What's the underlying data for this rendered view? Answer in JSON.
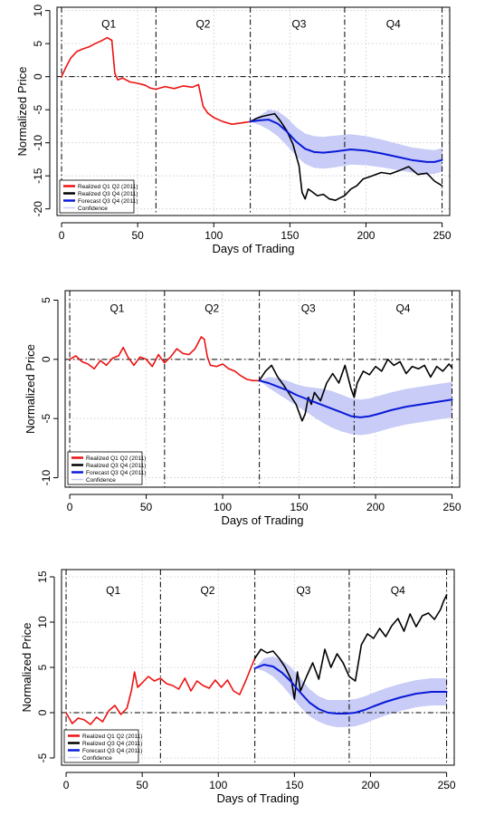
{
  "chart_data": [
    {
      "type": "line",
      "xlabel": "Days of Trading",
      "ylabel": "Normalized Price",
      "xlim": [
        -3,
        255
      ],
      "ylim": [
        -21,
        10.5
      ],
      "xticks": [
        0,
        50,
        100,
        150,
        200,
        250
      ],
      "yticks": [
        -20,
        -15,
        -10,
        -5,
        0,
        5,
        10
      ],
      "quarter_labels": [
        "Q1",
        "Q2",
        "Q3",
        "Q4"
      ],
      "quarter_label_x": [
        31,
        93,
        156,
        218
      ],
      "quarter_label_y": 8,
      "quarter_boundaries": [
        0,
        62,
        124,
        186,
        250
      ],
      "zero_line": 0,
      "grid": true,
      "legend_position": "bottom-left",
      "legend": [
        {
          "label": "Realized Q1 Q2 (2011)",
          "color": "#ee1111"
        },
        {
          "label": "Realized Q3 Q4 (2011)",
          "color": "#000000"
        },
        {
          "label": "Forecast Q3 Q4 (2011)",
          "color": "#0a1ad8"
        },
        {
          "label": "Confidence",
          "color": "#c8ccf6"
        }
      ],
      "series": [
        {
          "name": "Realized Q1 Q2 (2011)",
          "color": "#ee1111",
          "x": [
            0,
            3,
            6,
            10,
            14,
            18,
            22,
            26,
            30,
            33,
            35,
            37,
            40,
            45,
            50,
            55,
            58,
            62,
            68,
            74,
            80,
            86,
            90,
            93,
            96,
            100,
            106,
            112,
            118,
            124
          ],
          "y": [
            0,
            1.5,
            2.8,
            3.8,
            4.2,
            4.5,
            5.0,
            5.4,
            5.9,
            5.5,
            0.5,
            -0.5,
            -0.2,
            -0.8,
            -1.0,
            -1.3,
            -1.7,
            -1.9,
            -1.5,
            -1.8,
            -1.4,
            -1.6,
            -1.2,
            -4.5,
            -5.5,
            -6.2,
            -6.8,
            -7.2,
            -7.0,
            -6.8
          ]
        },
        {
          "name": "Realized Q3 Q4 (2011)",
          "color": "#000000",
          "x": [
            124,
            128,
            132,
            136,
            140,
            144,
            148,
            152,
            156,
            158,
            160,
            162,
            164,
            168,
            172,
            176,
            180,
            184,
            186,
            190,
            194,
            198,
            204,
            210,
            216,
            222,
            228,
            234,
            240,
            245,
            250
          ],
          "y": [
            -6.8,
            -6.3,
            -6.0,
            -5.8,
            -5.6,
            -6.8,
            -8.2,
            -10.2,
            -13.5,
            -17.5,
            -18.5,
            -17.0,
            -17.3,
            -18.0,
            -17.8,
            -18.5,
            -18.7,
            -18.2,
            -18.0,
            -17.0,
            -16.5,
            -15.5,
            -15.0,
            -14.5,
            -14.7,
            -14.2,
            -13.6,
            -14.8,
            -14.6,
            -15.8,
            -16.5
          ]
        },
        {
          "name": "Forecast Q3 Q4 (2011)",
          "color": "#0a1ad8",
          "x": [
            124,
            130,
            136,
            142,
            148,
            154,
            160,
            166,
            172,
            180,
            190,
            200,
            210,
            220,
            230,
            240,
            245,
            250
          ],
          "y": [
            -6.8,
            -6.6,
            -6.5,
            -7.1,
            -8.3,
            -9.8,
            -10.9,
            -11.4,
            -11.5,
            -11.3,
            -11.0,
            -11.2,
            -11.6,
            -12.1,
            -12.6,
            -12.9,
            -12.9,
            -12.6
          ]
        }
      ],
      "confidence": {
        "name": "Confidence",
        "color": "#c8ccf6",
        "x": [
          124,
          130,
          136,
          142,
          148,
          154,
          160,
          166,
          172,
          180,
          190,
          200,
          210,
          220,
          230,
          240,
          245,
          250
        ],
        "lower": [
          -6.8,
          -7.3,
          -8.0,
          -9.0,
          -10.4,
          -12.0,
          -13.2,
          -13.8,
          -13.9,
          -13.7,
          -13.3,
          -13.4,
          -13.7,
          -14.1,
          -14.5,
          -14.8,
          -14.7,
          -14.4
        ],
        "upper": [
          -6.8,
          -5.9,
          -5.0,
          -5.2,
          -6.2,
          -7.6,
          -8.6,
          -9.0,
          -9.1,
          -8.9,
          -8.7,
          -9.0,
          -9.5,
          -10.1,
          -10.7,
          -11.0,
          -11.1,
          -10.8
        ]
      }
    },
    {
      "type": "line",
      "xlabel": "Days of Trading",
      "ylabel": "Normalized Price",
      "xlim": [
        -3,
        255
      ],
      "ylim": [
        -10.8,
        5.8
      ],
      "xticks": [
        0,
        50,
        100,
        150,
        200,
        250
      ],
      "yticks": [
        -10,
        -5,
        0,
        5
      ],
      "quarter_labels": [
        "Q1",
        "Q2",
        "Q3",
        "Q4"
      ],
      "quarter_label_x": [
        31,
        93,
        156,
        218
      ],
      "quarter_label_y": 4.3,
      "quarter_boundaries": [
        0,
        62,
        124,
        186,
        250
      ],
      "zero_line": 0,
      "grid": true,
      "legend_position": "bottom-left",
      "legend": [
        {
          "label": "Realized Q1 Q2 (2011)",
          "color": "#ee1111"
        },
        {
          "label": "Realized Q3 Q4 (2011)",
          "color": "#000000"
        },
        {
          "label": "Forecast Q3 Q4 (2011)",
          "color": "#0a1ad8"
        },
        {
          "label": "Confidence",
          "color": "#c8ccf6"
        }
      ],
      "series": [
        {
          "name": "Realized Q1 Q2 (2011)",
          "color": "#ee1111",
          "x": [
            0,
            4,
            8,
            12,
            16,
            20,
            24,
            28,
            32,
            35,
            38,
            42,
            46,
            50,
            54,
            58,
            62,
            66,
            70,
            74,
            78,
            82,
            86,
            88,
            90,
            92,
            96,
            100,
            104,
            108,
            112,
            116,
            120,
            124
          ],
          "y": [
            0,
            0.3,
            -0.2,
            -0.4,
            -0.8,
            -0.1,
            -0.5,
            0.1,
            0.3,
            1.0,
            0.2,
            -0.5,
            0.2,
            0.0,
            -0.6,
            0.4,
            -0.3,
            0.2,
            0.9,
            0.5,
            0.4,
            0.9,
            1.9,
            1.7,
            0.2,
            -0.5,
            -0.6,
            -0.4,
            -0.8,
            -1.0,
            -1.4,
            -1.7,
            -1.8,
            -1.8
          ]
        },
        {
          "name": "Realized Q3 Q4 (2011)",
          "color": "#000000",
          "x": [
            124,
            128,
            132,
            136,
            140,
            144,
            148,
            152,
            154,
            156,
            158,
            160,
            164,
            168,
            172,
            176,
            180,
            184,
            186,
            188,
            192,
            196,
            200,
            204,
            208,
            212,
            216,
            220,
            224,
            228,
            232,
            236,
            240,
            244,
            248,
            250
          ],
          "y": [
            -1.8,
            -1.0,
            -0.5,
            -1.5,
            -2.2,
            -3.0,
            -3.8,
            -5.2,
            -4.6,
            -3.2,
            -3.8,
            -2.8,
            -3.5,
            -2.0,
            -1.2,
            -2.0,
            -0.5,
            -2.5,
            -3.2,
            -2.0,
            -1.0,
            -1.3,
            -0.6,
            -1.0,
            0.0,
            -0.5,
            -0.2,
            -1.2,
            -0.6,
            -0.8,
            -0.5,
            -1.5,
            -0.6,
            -1.0,
            -0.4,
            -0.7
          ]
        },
        {
          "name": "Forecast Q3 Q4 (2011)",
          "color": "#0a1ad8",
          "x": [
            124,
            130,
            136,
            142,
            148,
            154,
            160,
            166,
            172,
            178,
            184,
            190,
            196,
            202,
            210,
            220,
            230,
            240,
            250
          ],
          "y": [
            -1.8,
            -2.0,
            -2.3,
            -2.6,
            -3.0,
            -3.3,
            -3.6,
            -3.9,
            -4.2,
            -4.5,
            -4.8,
            -4.9,
            -4.8,
            -4.6,
            -4.3,
            -4.0,
            -3.8,
            -3.6,
            -3.4
          ]
        }
      ],
      "confidence": {
        "name": "Confidence",
        "color": "#c8ccf6",
        "x": [
          124,
          130,
          136,
          142,
          148,
          154,
          160,
          166,
          172,
          178,
          184,
          190,
          196,
          202,
          210,
          220,
          230,
          240,
          250
        ],
        "lower": [
          -1.8,
          -2.4,
          -2.9,
          -3.4,
          -3.9,
          -4.4,
          -4.9,
          -5.4,
          -5.8,
          -6.1,
          -6.3,
          -6.4,
          -6.3,
          -6.1,
          -5.8,
          -5.5,
          -5.3,
          -5.1,
          -4.9
        ],
        "upper": [
          -1.8,
          -1.5,
          -1.6,
          -1.8,
          -2.1,
          -2.3,
          -2.4,
          -2.5,
          -2.7,
          -3.0,
          -3.3,
          -3.4,
          -3.3,
          -3.1,
          -2.8,
          -2.5,
          -2.3,
          -2.1,
          -1.9
        ]
      }
    },
    {
      "type": "line",
      "xlabel": "Days of Trading",
      "ylabel": "Normalized Price",
      "xlim": [
        -3,
        255
      ],
      "ylim": [
        -5.8,
        15.8
      ],
      "xticks": [
        0,
        50,
        100,
        150,
        200,
        250
      ],
      "yticks": [
        -5,
        0,
        5,
        10,
        15
      ],
      "quarter_labels": [
        "Q1",
        "Q2",
        "Q3",
        "Q4"
      ],
      "quarter_label_x": [
        31,
        93,
        156,
        218
      ],
      "quarter_label_y": 13.5,
      "quarter_boundaries": [
        0,
        62,
        124,
        186,
        250
      ],
      "zero_line": 0,
      "grid": true,
      "legend_position": "bottom-left",
      "legend": [
        {
          "label": "Realized Q1 Q2 (2011)",
          "color": "#ee1111"
        },
        {
          "label": "Realized Q3 Q4 (2011)",
          "color": "#000000"
        },
        {
          "label": "Forecast Q3 Q4 (2011)",
          "color": "#0a1ad8"
        },
        {
          "label": "Confidence",
          "color": "#c8ccf6"
        }
      ],
      "series": [
        {
          "name": "Realized Q1 Q2 (2011)",
          "color": "#ee1111",
          "x": [
            0,
            4,
            8,
            12,
            16,
            20,
            24,
            28,
            32,
            36,
            40,
            43,
            45,
            47,
            50,
            54,
            58,
            62,
            66,
            70,
            74,
            78,
            82,
            86,
            90,
            94,
            98,
            102,
            106,
            110,
            114,
            118,
            122,
            124
          ],
          "y": [
            0,
            -1.2,
            -0.6,
            -0.8,
            -1.3,
            -0.5,
            -1.0,
            0.2,
            0.8,
            -0.2,
            0.5,
            2.5,
            4.5,
            2.8,
            3.3,
            4.0,
            3.5,
            3.8,
            3.2,
            3.0,
            2.6,
            3.8,
            2.4,
            3.5,
            3.0,
            2.7,
            3.6,
            2.8,
            3.6,
            2.4,
            2.0,
            3.5,
            5.2,
            6.0
          ]
        },
        {
          "name": "Realized Q3 Q4 (2011)",
          "color": "#000000",
          "x": [
            124,
            128,
            132,
            136,
            140,
            144,
            148,
            150,
            152,
            154,
            158,
            162,
            166,
            170,
            174,
            178,
            182,
            186,
            190,
            194,
            198,
            202,
            206,
            210,
            214,
            218,
            222,
            226,
            230,
            234,
            238,
            242,
            246,
            248,
            250
          ],
          "y": [
            6.0,
            7.0,
            6.6,
            6.8,
            6.0,
            5.0,
            3.6,
            1.5,
            4.5,
            2.4,
            4.0,
            5.5,
            3.7,
            7.0,
            5.0,
            6.5,
            5.5,
            4.0,
            3.5,
            7.5,
            8.7,
            8.2,
            9.3,
            8.4,
            9.6,
            10.4,
            9.0,
            10.9,
            9.5,
            10.7,
            11.0,
            10.3,
            11.4,
            12.3,
            13.0
          ]
        },
        {
          "name": "Forecast Q3 Q4 (2011)",
          "color": "#0a1ad8",
          "x": [
            124,
            130,
            136,
            142,
            148,
            154,
            160,
            166,
            172,
            178,
            184,
            190,
            196,
            202,
            210,
            220,
            230,
            240,
            250
          ],
          "y": [
            4.9,
            5.3,
            5.1,
            4.4,
            3.4,
            2.2,
            1.1,
            0.4,
            0.0,
            -0.1,
            -0.1,
            0.0,
            0.3,
            0.7,
            1.2,
            1.7,
            2.1,
            2.3,
            2.3
          ]
        }
      ],
      "confidence": {
        "name": "Confidence",
        "color": "#c8ccf6",
        "x": [
          124,
          130,
          136,
          142,
          148,
          154,
          160,
          166,
          172,
          178,
          184,
          190,
          196,
          202,
          210,
          220,
          230,
          240,
          250
        ],
        "lower": [
          4.9,
          4.6,
          4.0,
          3.0,
          1.8,
          0.6,
          -0.4,
          -1.0,
          -1.4,
          -1.6,
          -1.6,
          -1.5,
          -1.2,
          -0.8,
          -0.3,
          0.2,
          0.6,
          0.8,
          0.8
        ],
        "upper": [
          4.9,
          6.0,
          6.2,
          5.8,
          5.0,
          3.8,
          2.6,
          1.8,
          1.4,
          1.4,
          1.4,
          1.5,
          1.8,
          2.2,
          2.7,
          3.2,
          3.6,
          3.8,
          3.8
        ]
      }
    }
  ]
}
